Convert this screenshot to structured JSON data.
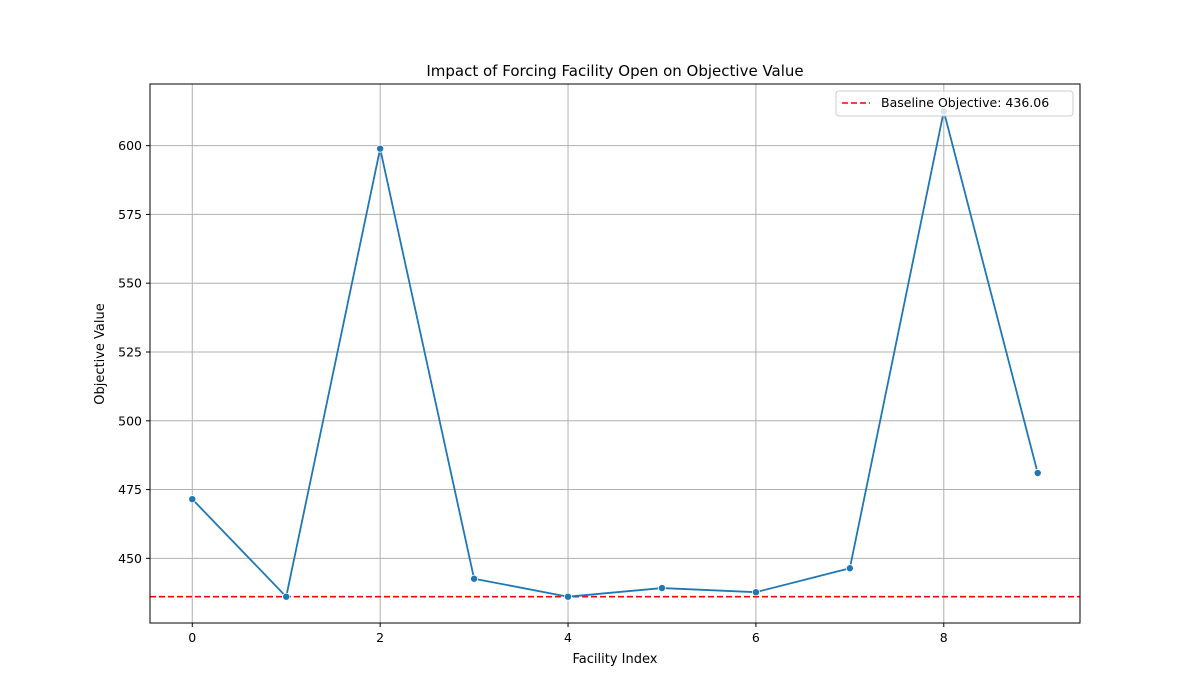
{
  "chart_data": {
    "type": "line",
    "title": "Impact of Forcing Facility Open on Objective Value",
    "xlabel": "Facility Index",
    "ylabel": "Objective Value",
    "x": [
      0,
      1,
      2,
      3,
      4,
      5,
      6,
      7,
      8,
      9
    ],
    "series": [
      {
        "values": [
          471.5,
          436.06,
          598.9,
          442.6,
          436.06,
          439.2,
          437.7,
          446.4,
          612.5,
          481.0
        ],
        "color": "#1f77b4",
        "marker": "circle"
      }
    ],
    "baseline": {
      "label": "Baseline Objective: 436.06",
      "value": 436.06,
      "color": "#ff0000",
      "style": "dashed"
    },
    "xlim": [
      -0.45,
      9.45
    ],
    "ylim": [
      426.5,
      622.4
    ],
    "xticks": [
      "0",
      "2",
      "4",
      "6",
      "8"
    ],
    "yticks": [
      "450",
      "475",
      "500",
      "525",
      "550",
      "575",
      "600"
    ],
    "grid": true,
    "legend_position": "top-right"
  }
}
